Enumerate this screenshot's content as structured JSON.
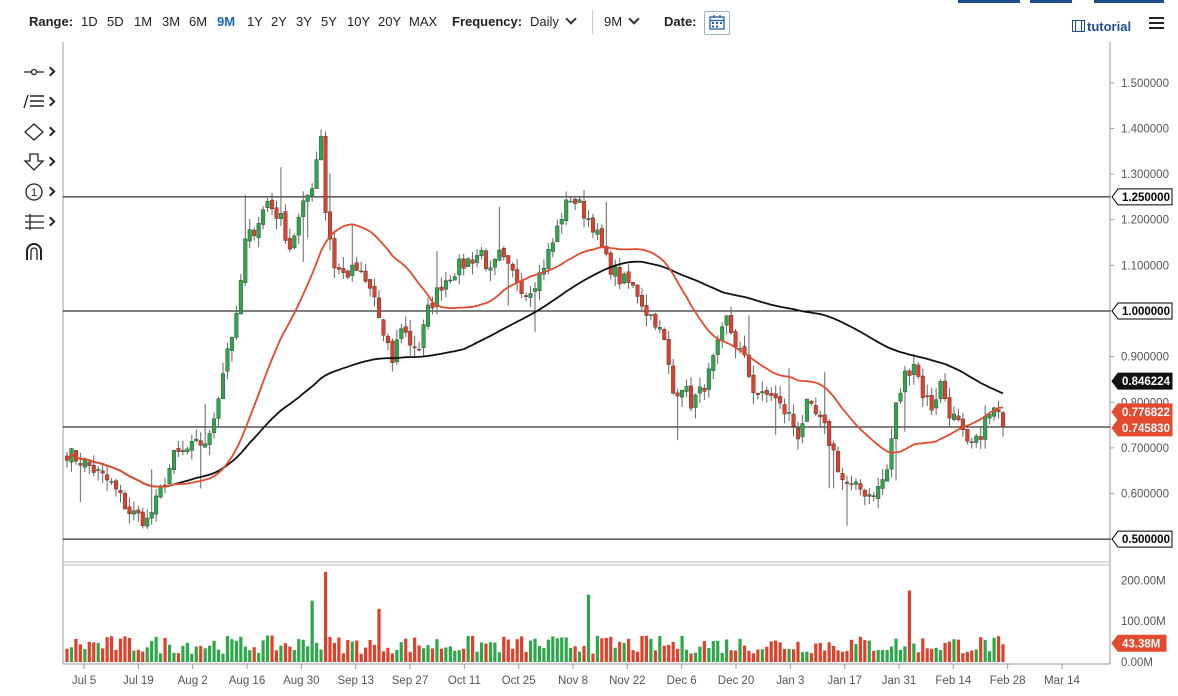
{
  "toolbar": {
    "range_label": "Range:",
    "ranges": [
      "1D",
      "5D",
      "1M",
      "3M",
      "6M",
      "9M",
      "1Y",
      "2Y",
      "3Y",
      "5Y",
      "10Y",
      "20Y",
      "MAX"
    ],
    "active_range": "9M",
    "frequency_label": "Frequency:",
    "frequency_value": "Daily",
    "period_value": "9M",
    "date_label": "Date:",
    "tutorial_label": "tutorial"
  },
  "drawing_tools": [
    "crosshair-icon",
    "trend-lines-icon",
    "shapes-icon",
    "arrow-down-icon",
    "annotation-number-icon",
    "fibonacci-icon",
    "magnet-icon"
  ],
  "colors": {
    "up": "#2ca84a",
    "down": "#e0402a",
    "sma50": "#e34a2e",
    "sma200": "#111111",
    "accent": "#1565c0"
  },
  "chart_data": {
    "type": "candlestick",
    "frequency": "Daily",
    "range": "9M",
    "ylim": [
      0.45,
      1.55
    ],
    "y_ticks": [
      "1.500000",
      "1.400000",
      "1.300000",
      "1.200000",
      "1.100000",
      "1.000000",
      "0.900000",
      "0.800000",
      "0.700000",
      "0.600000",
      "0.500000"
    ],
    "x_ticks": [
      "Jul 5",
      "Jul 19",
      "Aug 2",
      "Aug 16",
      "Aug 30",
      "Sep 13",
      "Sep 27",
      "Oct 11",
      "Oct 25",
      "Nov 8",
      "Nov 22",
      "Dec 6",
      "Dec 20",
      "Jan 3",
      "Jan 17",
      "Jan 31",
      "Feb 14",
      "Feb 28",
      "Mar 14"
    ],
    "horizontal_lines": [
      1.25,
      1.0,
      0.74583,
      0.5
    ],
    "price_labels": [
      {
        "text": "1.250000",
        "value": 1.25,
        "style": "line"
      },
      {
        "text": "1.000000",
        "value": 1.0,
        "style": "line"
      },
      {
        "text": "0.846224",
        "value": 0.846224,
        "style": "sma200"
      },
      {
        "text": "0.776822",
        "value": 0.776822,
        "style": "sma50"
      },
      {
        "text": "0.745830",
        "value": 0.74583,
        "style": "last"
      },
      {
        "text": "0.500000",
        "value": 0.5,
        "style": "line"
      }
    ],
    "close_anchors": [
      [
        0,
        0.69
      ],
      [
        5,
        0.66
      ],
      [
        10,
        0.62
      ],
      [
        14,
        0.56
      ],
      [
        18,
        0.54
      ],
      [
        20,
        0.58
      ],
      [
        24,
        0.68
      ],
      [
        28,
        0.7
      ],
      [
        32,
        0.72
      ],
      [
        36,
        0.92
      ],
      [
        38,
        0.98
      ],
      [
        40,
        1.15
      ],
      [
        42,
        1.18
      ],
      [
        45,
        1.24
      ],
      [
        48,
        1.2
      ],
      [
        50,
        1.14
      ],
      [
        52,
        1.2
      ],
      [
        55,
        1.28
      ],
      [
        57,
        1.39
      ],
      [
        58,
        1.22
      ],
      [
        60,
        1.1
      ],
      [
        62,
        1.08
      ],
      [
        65,
        1.09
      ],
      [
        67,
        1.06
      ],
      [
        69,
        1.03
      ],
      [
        71,
        0.94
      ],
      [
        73,
        0.89
      ],
      [
        75,
        0.97
      ],
      [
        77,
        0.93
      ],
      [
        79,
        0.92
      ],
      [
        81,
        1.0
      ],
      [
        84,
        1.06
      ],
      [
        87,
        1.09
      ],
      [
        90,
        1.11
      ],
      [
        93,
        1.13
      ],
      [
        95,
        1.08
      ],
      [
        97,
        1.12
      ],
      [
        99,
        1.09
      ],
      [
        101,
        1.07
      ],
      [
        103,
        1.04
      ],
      [
        106,
        1.08
      ],
      [
        109,
        1.15
      ],
      [
        111,
        1.21
      ],
      [
        113,
        1.25
      ],
      [
        115,
        1.23
      ],
      [
        118,
        1.19
      ],
      [
        121,
        1.11
      ],
      [
        124,
        1.07
      ],
      [
        126,
        1.06
      ],
      [
        128,
        1.04
      ],
      [
        130,
        1.0
      ],
      [
        132,
        0.98
      ],
      [
        134,
        0.93
      ],
      [
        136,
        0.82
      ],
      [
        138,
        0.84
      ],
      [
        140,
        0.8
      ],
      [
        142,
        0.82
      ],
      [
        144,
        0.86
      ],
      [
        146,
        0.92
      ],
      [
        148,
        0.98
      ],
      [
        150,
        0.93
      ],
      [
        152,
        0.89
      ],
      [
        154,
        0.83
      ],
      [
        156,
        0.81
      ],
      [
        158,
        0.82
      ],
      [
        160,
        0.79
      ],
      [
        162,
        0.77
      ],
      [
        164,
        0.73
      ],
      [
        166,
        0.79
      ],
      [
        168,
        0.77
      ],
      [
        170,
        0.74
      ],
      [
        172,
        0.69
      ],
      [
        174,
        0.63
      ],
      [
        176,
        0.61
      ],
      [
        178,
        0.61
      ],
      [
        180,
        0.6
      ],
      [
        182,
        0.61
      ],
      [
        184,
        0.65
      ],
      [
        186,
        0.79
      ],
      [
        188,
        0.86
      ],
      [
        190,
        0.89
      ],
      [
        192,
        0.82
      ],
      [
        194,
        0.79
      ],
      [
        196,
        0.84
      ],
      [
        198,
        0.78
      ],
      [
        200,
        0.75
      ],
      [
        202,
        0.7
      ],
      [
        204,
        0.71
      ],
      [
        206,
        0.76
      ],
      [
        208,
        0.78
      ],
      [
        210,
        0.75
      ]
    ],
    "sma50_label": 0.776822,
    "sma200_label": 0.846224,
    "last_close": 0.74583,
    "volume": {
      "ylim": [
        0,
        230
      ],
      "y_ticks": [
        "200.00M",
        "100.00M",
        "0.00M"
      ],
      "last_label": "43.38M",
      "last_value": 43.38,
      "peaks": [
        [
          58,
          220
        ],
        [
          70,
          130
        ],
        [
          117,
          165
        ],
        [
          189,
          175
        ],
        [
          55,
          150
        ]
      ]
    }
  }
}
